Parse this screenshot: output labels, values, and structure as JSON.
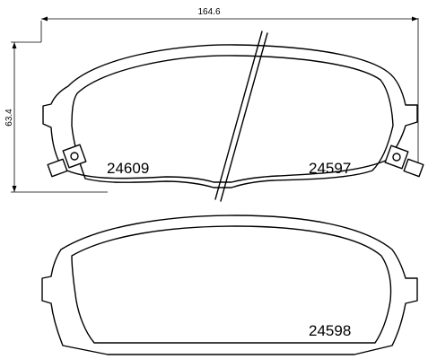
{
  "dimensions": {
    "width_label": "164.6",
    "height_label": "63.4"
  },
  "part_numbers": {
    "upper_left": "24609",
    "upper_right": "24597",
    "lower": "24598"
  }
}
